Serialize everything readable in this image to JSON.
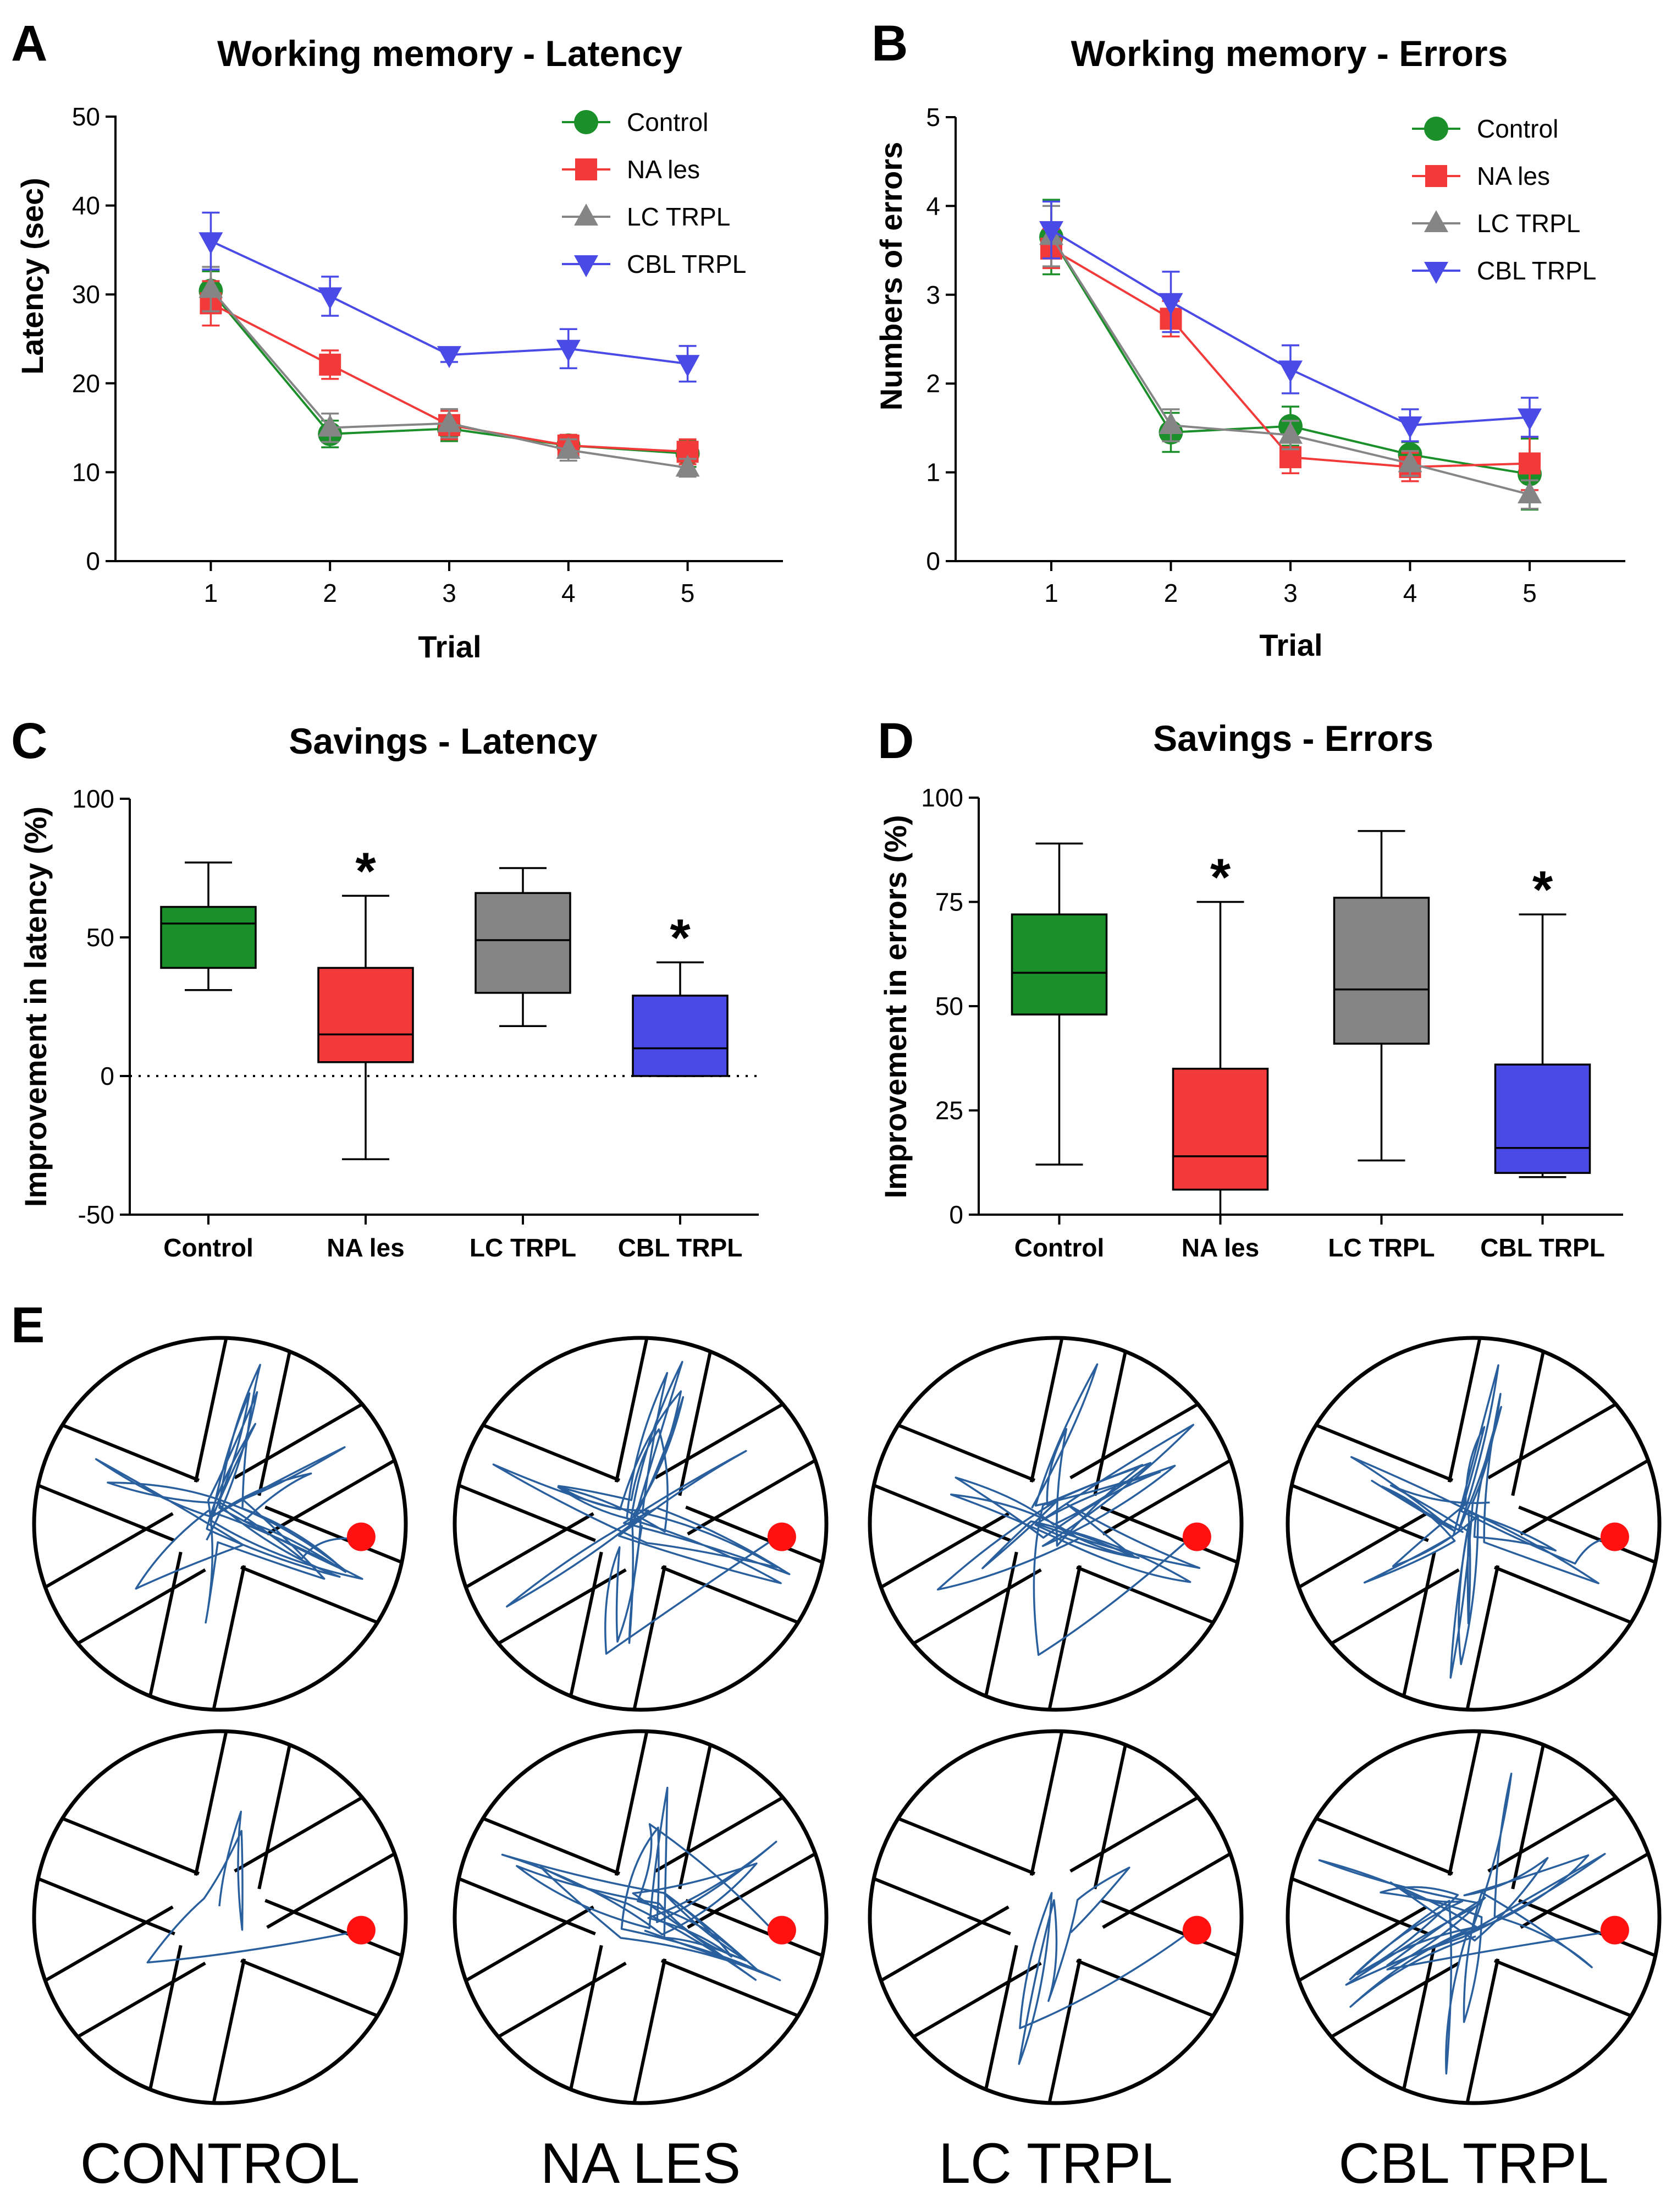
{
  "panels": {
    "A": {
      "letter": "A",
      "title": "Working memory - Latency",
      "xlabel": "Trial",
      "ylabel": "Latency (sec)",
      "x_ticks": [
        "1",
        "2",
        "3",
        "4",
        "5"
      ],
      "y_ticks": [
        "0",
        "10",
        "20",
        "30",
        "40",
        "50"
      ]
    },
    "B": {
      "letter": "B",
      "title": "Working memory - Errors",
      "xlabel": "Trial",
      "ylabel": "Numbers of errors",
      "x_ticks": [
        "1",
        "2",
        "3",
        "4",
        "5"
      ],
      "y_ticks": [
        "0",
        "1",
        "2",
        "3",
        "4",
        "5"
      ]
    },
    "C": {
      "letter": "C",
      "title": "Savings - Latency",
      "ylabel": "Improvement in latency (%)",
      "y_ticks": [
        "-50",
        "0",
        "50",
        "100"
      ],
      "star": "*"
    },
    "D": {
      "letter": "D",
      "title": "Savings - Errors",
      "ylabel": "Improvement in errors (%)",
      "y_ticks": [
        "0",
        "25",
        "50",
        "75",
        "100"
      ],
      "star": "*"
    },
    "E": {
      "letter": "E",
      "labels": [
        "CONTROL",
        "NA LES",
        "LC TRPL",
        "CBL TRPL"
      ]
    }
  },
  "legend": [
    "Control",
    "NA les",
    "LC TRPL",
    "CBL TRPL"
  ],
  "colors": {
    "Control": "#1a8f2a",
    "NA les": "#f23a3a",
    "LC TRPL": "#858585",
    "CBL TRPL": "#4a4ae6",
    "path": "#2a5f9e",
    "goal": "#ff1111"
  },
  "chart_data": [
    {
      "panel": "A",
      "type": "line",
      "title": "Working memory - Latency",
      "xlabel": "Trial",
      "ylabel": "Latency (sec)",
      "x": [
        1,
        2,
        3,
        4,
        5
      ],
      "xlim": [
        0.2,
        5.8
      ],
      "ylim": [
        0,
        50
      ],
      "series": [
        {
          "name": "Control",
          "values": [
            30.4,
            14.3,
            14.9,
            13.0,
            12.1
          ],
          "errors": [
            2.2,
            1.5,
            1.4,
            1.2,
            1.5
          ]
        },
        {
          "name": "NA les",
          "values": [
            29.0,
            22.1,
            15.3,
            13.0,
            12.3
          ],
          "errors": [
            2.5,
            1.6,
            1.6,
            1.2,
            1.4
          ]
        },
        {
          "name": "LC TRPL",
          "values": [
            30.6,
            15.0,
            15.5,
            12.5,
            10.5
          ],
          "errors": [
            2.5,
            1.6,
            1.6,
            1.2,
            1.0
          ]
        },
        {
          "name": "CBL TRPL",
          "values": [
            36.0,
            29.8,
            23.2,
            23.9,
            22.2
          ],
          "errors": [
            3.2,
            2.2,
            0.8,
            2.2,
            2.0
          ]
        }
      ]
    },
    {
      "panel": "B",
      "type": "line",
      "title": "Working memory - Errors",
      "xlabel": "Trial",
      "ylabel": "Numbers of errors",
      "x": [
        1,
        2,
        3,
        4,
        5
      ],
      "xlim": [
        0.2,
        5.8
      ],
      "ylim": [
        0,
        5
      ],
      "series": [
        {
          "name": "Control",
          "values": [
            3.65,
            1.45,
            1.52,
            1.2,
            0.98
          ],
          "errors": [
            0.42,
            0.22,
            0.22,
            0.14,
            0.4
          ]
        },
        {
          "name": "NA les",
          "values": [
            3.52,
            2.73,
            1.17,
            1.06,
            1.1
          ],
          "errors": [
            0.22,
            0.2,
            0.18,
            0.16,
            0.3
          ]
        },
        {
          "name": "LC TRPL",
          "values": [
            3.66,
            1.53,
            1.42,
            1.1,
            0.75
          ],
          "errors": [
            0.34,
            0.18,
            0.16,
            0.14,
            0.16
          ]
        },
        {
          "name": "CBL TRPL",
          "values": [
            3.73,
            2.92,
            2.16,
            1.53,
            1.62
          ],
          "errors": [
            0.32,
            0.34,
            0.27,
            0.18,
            0.22
          ]
        }
      ]
    },
    {
      "panel": "C",
      "type": "box",
      "title": "Savings - Latency",
      "ylabel": "Improvement in latency (%)",
      "ylim": [
        -50,
        100
      ],
      "reference_line": 0,
      "categories": [
        "Control",
        "NA les",
        "LC TRPL",
        "CBL TRPL"
      ],
      "boxes": [
        {
          "min": 31,
          "q1": 39,
          "median": 55,
          "q3": 61,
          "max": 77,
          "significant": false
        },
        {
          "min": -30,
          "q1": 5,
          "median": 15,
          "q3": 39,
          "max": 65,
          "significant": true
        },
        {
          "min": 18,
          "q1": 30,
          "median": 49,
          "q3": 66,
          "max": 75,
          "significant": false
        },
        {
          "min": 0,
          "q1": 0,
          "median": 10,
          "q3": 29,
          "max": 41,
          "significant": true
        }
      ]
    },
    {
      "panel": "D",
      "type": "box",
      "title": "Savings - Errors",
      "ylabel": "Improvement in errors (%)",
      "ylim": [
        0,
        100
      ],
      "categories": [
        "Control",
        "NA les",
        "LC TRPL",
        "CBL TRPL"
      ],
      "boxes": [
        {
          "min": 12,
          "q1": 48,
          "median": 58,
          "q3": 72,
          "max": 89,
          "significant": false
        },
        {
          "min": 0,
          "q1": 6,
          "median": 14,
          "q3": 35,
          "max": 75,
          "significant": true
        },
        {
          "min": 13,
          "q1": 41,
          "median": 54,
          "q3": 76,
          "max": 92,
          "significant": false
        },
        {
          "min": 9,
          "q1": 10,
          "median": 16,
          "q3": 36,
          "max": 72,
          "significant": true
        }
      ]
    }
  ]
}
